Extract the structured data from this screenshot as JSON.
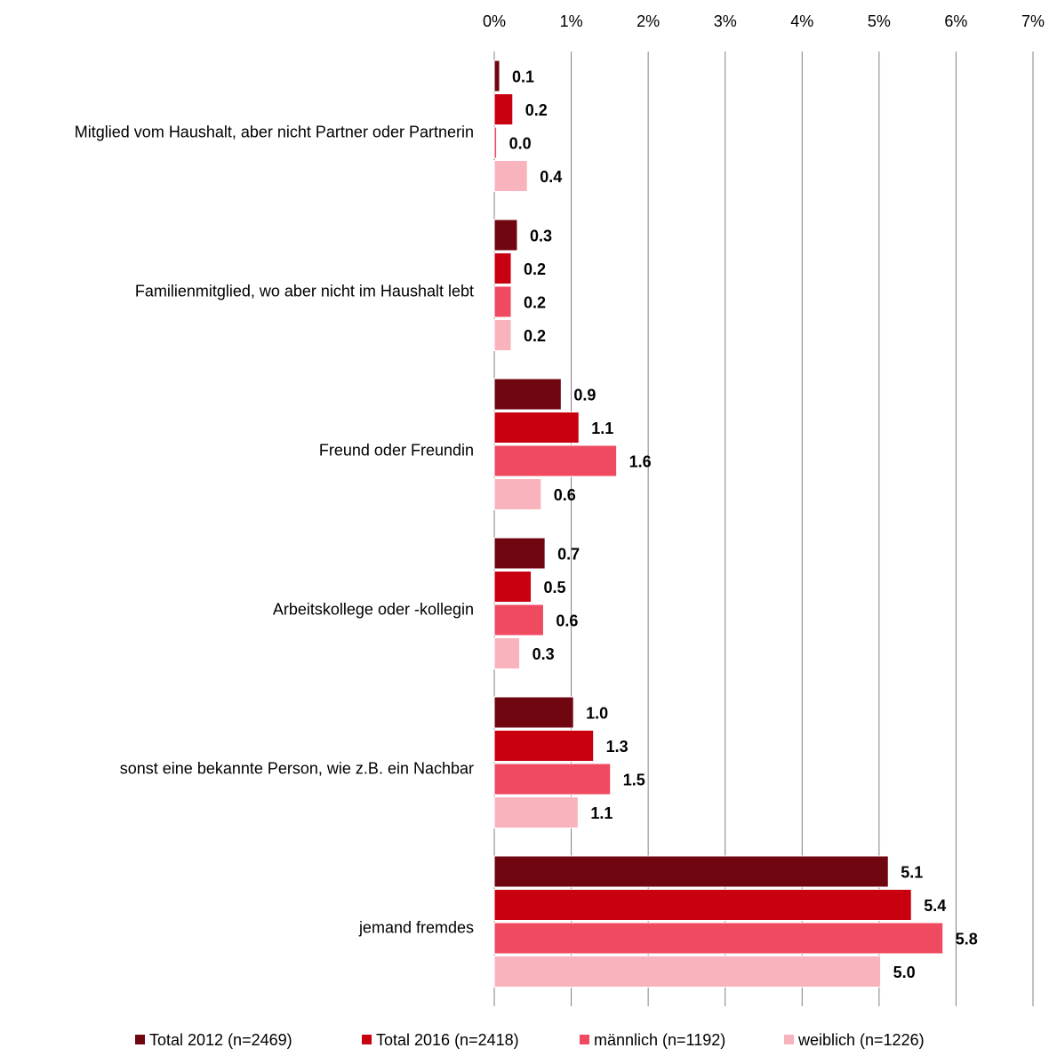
{
  "chart_data": {
    "type": "bar",
    "orientation": "horizontal",
    "categories": [
      "Mitglied vom Haushalt, aber nicht Partner oder Partnerin",
      "Familienmitglied, wo aber nicht im Haushalt lebt",
      "Freund oder Freundin",
      "Arbeitskollege oder -kollegin",
      "sonst eine bekannte Person, wie z.B. ein Nachbar",
      "jemand fremdes"
    ],
    "series": [
      {
        "name": "Total 2012 (n=2469)",
        "color": "#6f0610",
        "values": [
          0.07,
          0.3,
          0.87,
          0.66,
          1.03,
          5.12
        ],
        "value_labels": [
          "0.1",
          "0.3",
          "0.9",
          "0.7",
          "1.0",
          "5.1"
        ]
      },
      {
        "name": "Total 2016 (n=2418)",
        "color": "#c8000f",
        "values": [
          0.24,
          0.22,
          1.1,
          0.48,
          1.29,
          5.42
        ],
        "value_labels": [
          "0.2",
          "0.2",
          "1.1",
          "0.5",
          "1.3",
          "5.4"
        ]
      },
      {
        "name": "männlich (n=1192)",
        "color": "#f04a60",
        "values": [
          0.03,
          0.22,
          1.59,
          0.64,
          1.51,
          5.83
        ],
        "value_labels": [
          "0.0",
          "0.2",
          "1.6",
          "0.6",
          "1.5",
          "5.8"
        ]
      },
      {
        "name": "weiblich (n=1226)",
        "color": "#f9b3bd",
        "values": [
          0.43,
          0.22,
          0.61,
          0.33,
          1.09,
          5.02
        ],
        "value_labels": [
          "0.4",
          "0.2",
          "0.6",
          "0.3",
          "1.1",
          "5.0"
        ]
      }
    ],
    "xlim": [
      0,
      7
    ],
    "xticks": [
      {
        "value": 0,
        "label": "0%"
      },
      {
        "value": 1,
        "label": "1%"
      },
      {
        "value": 2,
        "label": "2%"
      },
      {
        "value": 3,
        "label": "3%"
      },
      {
        "value": 4,
        "label": "4%"
      },
      {
        "value": 5,
        "label": "5%"
      },
      {
        "value": 6,
        "label": "6%"
      },
      {
        "value": 7,
        "label": "7%"
      }
    ],
    "grid": true,
    "legend": "bottom"
  }
}
